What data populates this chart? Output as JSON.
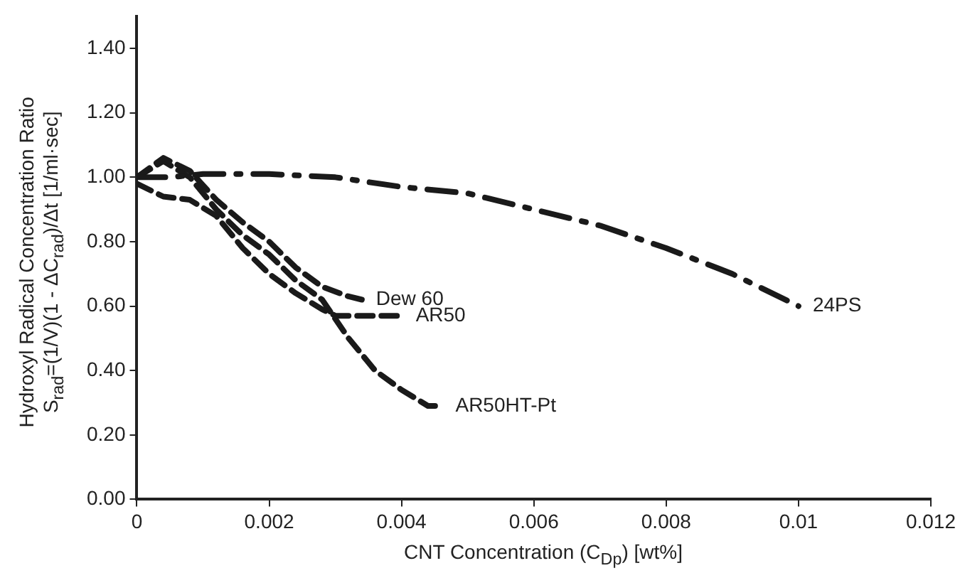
{
  "chart_data": {
    "type": "line",
    "xlabel": "CNT Concentration (C$_{Dp}$) [wt%]",
    "ylabel": "Hydroxyl Radical Concentration Ratio\nS$_{rad}$=(1/V)(1 - ΔC$_{rad}$)/Δt [1/ml·sec]",
    "xlim": [
      0,
      0.012
    ],
    "xticks": [
      0,
      0.002,
      0.004,
      0.006,
      0.008,
      0.01,
      0.012
    ],
    "ylim": [
      0,
      1.5
    ],
    "yticks": [
      {
        "value": 0,
        "label": "0.00"
      },
      {
        "value": 0.2,
        "label": "0.20"
      },
      {
        "value": 0.4,
        "label": "0.40"
      },
      {
        "value": 0.6,
        "label": "0.60"
      },
      {
        "value": 0.8,
        "label": "0.80"
      },
      {
        "value": 1.0,
        "label": "1.00"
      },
      {
        "value": 1.2,
        "label": "1.20"
      },
      {
        "value": 1.4,
        "label": "1.40"
      }
    ],
    "grid": false,
    "legend": false,
    "marker": "none",
    "series": [
      {
        "name": "24PS",
        "color": "#1a1a1a",
        "line_style": "dashdot",
        "x": [
          0,
          0.0005,
          0.001,
          0.002,
          0.003,
          0.004,
          0.005,
          0.006,
          0.007,
          0.008,
          0.009,
          0.01
        ],
        "values": [
          1.0,
          1.0,
          1.01,
          1.01,
          1.0,
          0.97,
          0.95,
          0.9,
          0.85,
          0.78,
          0.7,
          0.6
        ]
      },
      {
        "name": "Dew 60",
        "color": "#1a1a1a",
        "line_style": "dashed",
        "x": [
          0,
          0.0004,
          0.0008,
          0.0012,
          0.0016,
          0.002,
          0.0024,
          0.0028,
          0.0032,
          0.0034
        ],
        "values": [
          1.0,
          1.06,
          1.02,
          0.93,
          0.86,
          0.8,
          0.72,
          0.66,
          0.63,
          0.62
        ]
      },
      {
        "name": "AR50",
        "color": "#1a1a1a",
        "line_style": "dashed",
        "x": [
          0,
          0.0004,
          0.0008,
          0.0012,
          0.0016,
          0.002,
          0.0024,
          0.0028,
          0.003,
          0.0034,
          0.004
        ],
        "values": [
          0.98,
          0.94,
          0.93,
          0.88,
          0.78,
          0.7,
          0.64,
          0.59,
          0.57,
          0.57,
          0.57
        ]
      },
      {
        "name": "AR50HT-Pt",
        "color": "#1a1a1a",
        "line_style": "dashed",
        "x": [
          0,
          0.0004,
          0.0008,
          0.0012,
          0.0016,
          0.002,
          0.0024,
          0.0028,
          0.0032,
          0.0036,
          0.004,
          0.0044,
          0.0046
        ],
        "values": [
          1.0,
          1.05,
          1.0,
          0.9,
          0.82,
          0.76,
          0.68,
          0.62,
          0.5,
          0.4,
          0.34,
          0.29,
          0.29
        ]
      }
    ]
  }
}
